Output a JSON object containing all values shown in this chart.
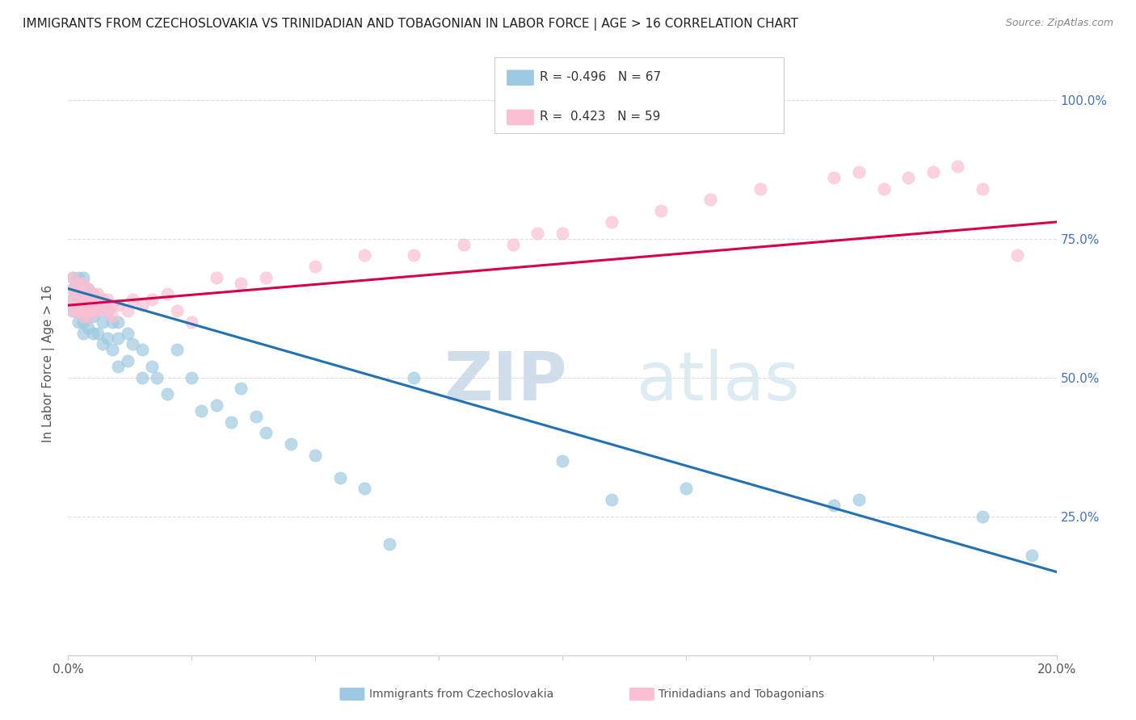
{
  "title": "IMMIGRANTS FROM CZECHOSLOVAKIA VS TRINIDADIAN AND TOBAGONIAN IN LABOR FORCE | AGE > 16 CORRELATION CHART",
  "source": "Source: ZipAtlas.com",
  "ylabel": "In Labor Force | Age > 16",
  "yticks_right": [
    "25.0%",
    "50.0%",
    "75.0%",
    "100.0%"
  ],
  "yticks_right_vals": [
    0.25,
    0.5,
    0.75,
    1.0
  ],
  "legend_label_blue": "Immigrants from Czechoslovakia",
  "legend_label_pink": "Trinidadians and Tobagonians",
  "color_blue": "#9ecae1",
  "color_pink": "#fcbfd2",
  "color_blue_line": "#2171b5",
  "color_pink_line": "#d6004c",
  "watermark_zip": "ZIP",
  "watermark_atlas": "atlas",
  "blue_R": -0.496,
  "pink_R": 0.423,
  "blue_N": 67,
  "pink_N": 59,
  "xlim": [
    0.0,
    0.2
  ],
  "ylim": [
    0.0,
    1.05
  ],
  "blue_scatter_x": [
    0.001,
    0.001,
    0.001,
    0.001,
    0.002,
    0.002,
    0.002,
    0.002,
    0.002,
    0.003,
    0.003,
    0.003,
    0.003,
    0.003,
    0.003,
    0.003,
    0.004,
    0.004,
    0.004,
    0.004,
    0.004,
    0.005,
    0.005,
    0.005,
    0.005,
    0.006,
    0.006,
    0.006,
    0.007,
    0.007,
    0.007,
    0.008,
    0.008,
    0.009,
    0.009,
    0.01,
    0.01,
    0.01,
    0.012,
    0.012,
    0.013,
    0.015,
    0.015,
    0.017,
    0.018,
    0.02,
    0.022,
    0.025,
    0.027,
    0.03,
    0.033,
    0.035,
    0.038,
    0.04,
    0.045,
    0.05,
    0.055,
    0.06,
    0.065,
    0.07,
    0.1,
    0.11,
    0.125,
    0.155,
    0.16,
    0.185,
    0.195
  ],
  "blue_scatter_y": [
    0.68,
    0.66,
    0.64,
    0.62,
    0.68,
    0.66,
    0.64,
    0.62,
    0.6,
    0.68,
    0.66,
    0.65,
    0.63,
    0.61,
    0.6,
    0.58,
    0.66,
    0.64,
    0.63,
    0.61,
    0.59,
    0.65,
    0.63,
    0.61,
    0.58,
    0.64,
    0.62,
    0.58,
    0.63,
    0.6,
    0.56,
    0.62,
    0.57,
    0.6,
    0.55,
    0.6,
    0.57,
    0.52,
    0.58,
    0.53,
    0.56,
    0.55,
    0.5,
    0.52,
    0.5,
    0.47,
    0.55,
    0.5,
    0.44,
    0.45,
    0.42,
    0.48,
    0.43,
    0.4,
    0.38,
    0.36,
    0.32,
    0.3,
    0.2,
    0.5,
    0.35,
    0.28,
    0.3,
    0.27,
    0.28,
    0.25,
    0.18
  ],
  "pink_scatter_x": [
    0.001,
    0.001,
    0.001,
    0.001,
    0.002,
    0.002,
    0.002,
    0.002,
    0.003,
    0.003,
    0.003,
    0.003,
    0.003,
    0.004,
    0.004,
    0.004,
    0.004,
    0.005,
    0.005,
    0.005,
    0.006,
    0.006,
    0.006,
    0.007,
    0.007,
    0.008,
    0.008,
    0.009,
    0.009,
    0.01,
    0.012,
    0.013,
    0.015,
    0.017,
    0.02,
    0.022,
    0.025,
    0.03,
    0.035,
    0.04,
    0.05,
    0.06,
    0.07,
    0.08,
    0.09,
    0.095,
    0.1,
    0.11,
    0.12,
    0.13,
    0.14,
    0.155,
    0.16,
    0.165,
    0.17,
    0.175,
    0.18,
    0.185,
    0.192
  ],
  "pink_scatter_y": [
    0.68,
    0.66,
    0.64,
    0.62,
    0.67,
    0.65,
    0.63,
    0.62,
    0.67,
    0.65,
    0.64,
    0.63,
    0.61,
    0.66,
    0.64,
    0.63,
    0.61,
    0.65,
    0.64,
    0.62,
    0.65,
    0.63,
    0.62,
    0.64,
    0.63,
    0.64,
    0.62,
    0.63,
    0.61,
    0.63,
    0.62,
    0.64,
    0.63,
    0.64,
    0.65,
    0.62,
    0.6,
    0.68,
    0.67,
    0.68,
    0.7,
    0.72,
    0.72,
    0.74,
    0.74,
    0.76,
    0.76,
    0.78,
    0.8,
    0.82,
    0.84,
    0.86,
    0.87,
    0.84,
    0.86,
    0.87,
    0.88,
    0.84,
    0.72
  ]
}
